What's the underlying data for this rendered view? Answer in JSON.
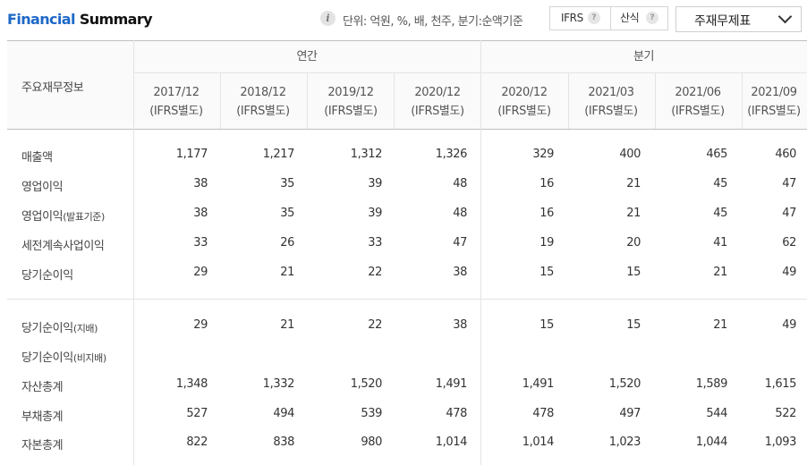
{
  "header": {
    "title_part1": "Financial",
    "title_part2": " Summary",
    "unit_text": "단위: 억원, %, 배, 천주, 분기:순액기준",
    "info_icon": "info-icon",
    "ifrs_label": "IFRS",
    "calc_label": "산식",
    "help_glyph": "?",
    "statement_select": "주재무제표"
  },
  "table": {
    "corner_label": "주요재무정보",
    "group_annual": "연간",
    "group_quarter": "분기",
    "periods": [
      {
        "date": "2017/12",
        "basis": "(IFRS별도)"
      },
      {
        "date": "2018/12",
        "basis": "(IFRS별도)"
      },
      {
        "date": "2019/12",
        "basis": "(IFRS별도)"
      },
      {
        "date": "2020/12",
        "basis": "(IFRS별도)"
      },
      {
        "date": "2020/12",
        "basis": "(IFRS별도)"
      },
      {
        "date": "2021/03",
        "basis": "(IFRS별도)"
      },
      {
        "date": "2021/06",
        "basis": "(IFRS별도)"
      },
      {
        "date": "2021/09",
        "basis": "(IFRS별도)"
      }
    ],
    "rows": [
      {
        "label": "매출액",
        "values": [
          "1,177",
          "1,217",
          "1,312",
          "1,326",
          "329",
          "400",
          "465",
          "460"
        ]
      },
      {
        "label": "영업이익",
        "values": [
          "38",
          "35",
          "39",
          "48",
          "16",
          "21",
          "45",
          "47"
        ]
      },
      {
        "label": "영업이익(발표기준)",
        "values": [
          "38",
          "35",
          "39",
          "48",
          "16",
          "21",
          "45",
          "47"
        ]
      },
      {
        "label": "세전계속사업이익",
        "values": [
          "33",
          "26",
          "33",
          "47",
          "19",
          "20",
          "41",
          "62"
        ]
      },
      {
        "label": "당기순이익",
        "values": [
          "29",
          "21",
          "22",
          "38",
          "15",
          "15",
          "21",
          "49"
        ]
      },
      {
        "label": "당기순이익(지배)",
        "values": [
          "29",
          "21",
          "22",
          "38",
          "15",
          "15",
          "21",
          "49"
        ]
      },
      {
        "label": "당기순이익(비지배)",
        "values": [
          "",
          "",
          "",
          "",
          "",
          "",
          "",
          ""
        ]
      },
      {
        "label": "자산총계",
        "values": [
          "1,348",
          "1,332",
          "1,520",
          "1,491",
          "1,491",
          "1,520",
          "1,589",
          "1,615"
        ]
      },
      {
        "label": "부채총계",
        "values": [
          "527",
          "494",
          "539",
          "478",
          "478",
          "497",
          "544",
          "522"
        ]
      },
      {
        "label": "자본총계",
        "values": [
          "822",
          "838",
          "980",
          "1,014",
          "1,014",
          "1,023",
          "1,044",
          "1,093"
        ]
      }
    ]
  }
}
